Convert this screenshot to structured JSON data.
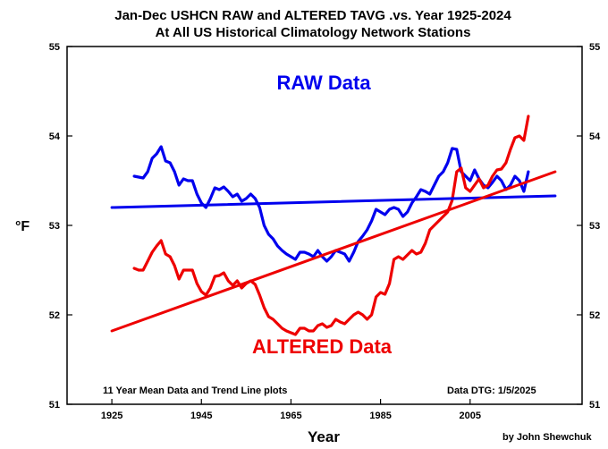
{
  "chart_data": {
    "type": "line",
    "title": "Jan-Dec USHCN RAW and ALTERED TAVG .vs. Year 1925-2024",
    "subtitle": "At All US Historical Climatology Network Stations",
    "xlabel": "Year",
    "ylabel": "°F",
    "xlim": [
      1915,
      2030
    ],
    "ylim": [
      51,
      55
    ],
    "x_ticks": [
      "1925",
      "1945",
      "1965",
      "1985",
      "2005"
    ],
    "y_ticks": [
      "51",
      "52",
      "53",
      "54",
      "55"
    ],
    "grid": false,
    "series": [
      {
        "name": "RAW Data",
        "color": "#0000ee",
        "x": [
          1930,
          1931,
          1932,
          1933,
          1934,
          1935,
          1936,
          1937,
          1938,
          1939,
          1940,
          1941,
          1942,
          1943,
          1944,
          1945,
          1946,
          1947,
          1948,
          1949,
          1950,
          1951,
          1952,
          1953,
          1954,
          1955,
          1956,
          1957,
          1958,
          1959,
          1960,
          1961,
          1962,
          1963,
          1964,
          1965,
          1966,
          1967,
          1968,
          1969,
          1970,
          1971,
          1972,
          1973,
          1974,
          1975,
          1976,
          1977,
          1978,
          1979,
          1980,
          1981,
          1982,
          1983,
          1984,
          1985,
          1986,
          1987,
          1988,
          1989,
          1990,
          1991,
          1992,
          1993,
          1994,
          1995,
          1996,
          1997,
          1998,
          1999,
          2000,
          2001,
          2002,
          2003,
          2004,
          2005,
          2006,
          2007,
          2008,
          2009,
          2010,
          2011,
          2012,
          2013,
          2014,
          2015,
          2016,
          2017,
          2018
        ],
        "values": [
          53.55,
          53.54,
          53.53,
          53.6,
          53.75,
          53.8,
          53.88,
          53.72,
          53.7,
          53.6,
          53.45,
          53.52,
          53.5,
          53.5,
          53.35,
          53.25,
          53.2,
          53.3,
          53.42,
          53.4,
          53.43,
          53.38,
          53.32,
          53.35,
          53.27,
          53.3,
          53.35,
          53.3,
          53.2,
          53.0,
          52.9,
          52.85,
          52.77,
          52.72,
          52.68,
          52.65,
          52.62,
          52.7,
          52.7,
          52.68,
          52.65,
          52.72,
          52.65,
          52.6,
          52.65,
          52.72,
          52.7,
          52.68,
          52.6,
          52.7,
          52.82,
          52.88,
          52.95,
          53.05,
          53.18,
          53.15,
          53.12,
          53.18,
          53.2,
          53.18,
          53.1,
          53.15,
          53.25,
          53.32,
          53.4,
          53.38,
          53.35,
          53.45,
          53.55,
          53.6,
          53.7,
          53.86,
          53.85,
          53.6,
          53.55,
          53.5,
          53.62,
          53.52,
          53.45,
          53.42,
          53.48,
          53.55,
          53.5,
          53.4,
          53.45,
          53.55,
          53.5,
          53.38,
          53.6
        ]
      },
      {
        "name": "ALTERED Data",
        "color": "#ee0000",
        "x": [
          1930,
          1931,
          1932,
          1933,
          1934,
          1935,
          1936,
          1937,
          1938,
          1939,
          1940,
          1941,
          1942,
          1943,
          1944,
          1945,
          1946,
          1947,
          1948,
          1949,
          1950,
          1951,
          1952,
          1953,
          1954,
          1955,
          1956,
          1957,
          1958,
          1959,
          1960,
          1961,
          1962,
          1963,
          1964,
          1965,
          1966,
          1967,
          1968,
          1969,
          1970,
          1971,
          1972,
          1973,
          1974,
          1975,
          1976,
          1977,
          1978,
          1979,
          1980,
          1981,
          1982,
          1983,
          1984,
          1985,
          1986,
          1987,
          1988,
          1989,
          1990,
          1991,
          1992,
          1993,
          1994,
          1995,
          1996,
          1997,
          1998,
          1999,
          2000,
          2001,
          2002,
          2003,
          2004,
          2005,
          2006,
          2007,
          2008,
          2009,
          2010,
          2011,
          2012,
          2013,
          2014,
          2015,
          2016,
          2017,
          2018
        ],
        "values": [
          52.52,
          52.5,
          52.5,
          52.6,
          52.7,
          52.77,
          52.83,
          52.68,
          52.65,
          52.55,
          52.4,
          52.5,
          52.5,
          52.5,
          52.35,
          52.26,
          52.22,
          52.3,
          52.43,
          52.44,
          52.47,
          52.38,
          52.33,
          52.38,
          52.3,
          52.35,
          52.38,
          52.34,
          52.22,
          52.08,
          51.98,
          51.95,
          51.9,
          51.85,
          51.82,
          51.8,
          51.78,
          51.85,
          51.85,
          51.82,
          51.82,
          51.88,
          51.9,
          51.86,
          51.88,
          51.95,
          51.92,
          51.9,
          51.95,
          52.0,
          52.03,
          52.0,
          51.95,
          52.0,
          52.2,
          52.25,
          52.23,
          52.35,
          52.62,
          52.65,
          52.62,
          52.67,
          52.72,
          52.68,
          52.7,
          52.8,
          52.95,
          53.0,
          53.05,
          53.1,
          53.15,
          53.28,
          53.6,
          53.64,
          53.42,
          53.38,
          53.45,
          53.52,
          53.42,
          53.45,
          53.55,
          53.62,
          53.63,
          53.7,
          53.85,
          53.98,
          54.0,
          53.95,
          54.22
        ]
      },
      {
        "name": "RAW trend",
        "color": "#0000ee",
        "x": [
          1925,
          2024
        ],
        "values": [
          53.2,
          53.33
        ]
      },
      {
        "name": "ALTERED trend",
        "color": "#ee0000",
        "x": [
          1925,
          2024
        ],
        "values": [
          51.82,
          53.6
        ]
      }
    ],
    "annotations": [
      {
        "text": "RAW Data",
        "color": "#0000ee"
      },
      {
        "text": "ALTERED Data",
        "color": "#ee0000"
      }
    ],
    "notes": {
      "left": "11 Year Mean Data and Trend Line plots",
      "right": "Data DTG: 1/5/2025"
    },
    "credit": "by John Shewchuk"
  }
}
